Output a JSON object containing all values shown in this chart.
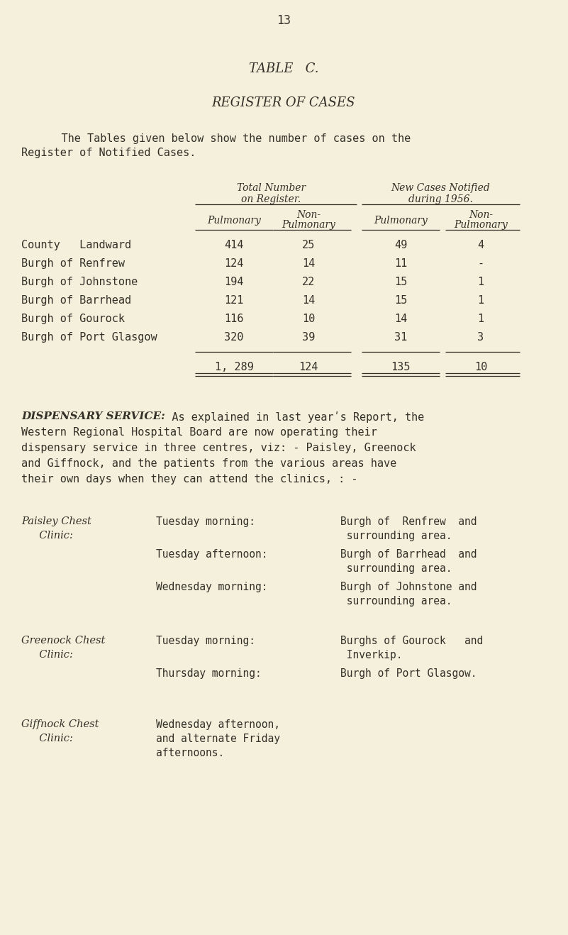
{
  "bg_color": "#f5f0dc",
  "text_color": "#333028",
  "page_number": "13",
  "title1": "TABLE   C.",
  "title2": "REGISTER OF CASES",
  "intro_line1": "    The Tables given below show the number of cases on the",
  "intro_line2": "Register of Notified Cases.",
  "col_header1a": "Total Number",
  "col_header1b": "on Register.",
  "col_header2a": "New Cases Notified",
  "col_header2b": "during 1956.",
  "rows": [
    {
      "label": "County   Landward",
      "v1": "414",
      "v2": "25",
      "v3": "49",
      "v4": "4"
    },
    {
      "label": "Burgh of Renfrew",
      "v1": "124",
      "v2": "14",
      "v3": "11",
      "v4": "-"
    },
    {
      "label": "Burgh of Johnstone",
      "v1": "194",
      "v2": "22",
      "v3": "15",
      "v4": "1"
    },
    {
      "label": "Burgh of Barrhead",
      "v1": "121",
      "v2": "14",
      "v3": "15",
      "v4": "1"
    },
    {
      "label": "Burgh of Gourock",
      "v1": "116",
      "v2": "10",
      "v3": "14",
      "v4": "1"
    },
    {
      "label": "Burgh of Port Glasgow",
      "v1": "320",
      "v2": "39",
      "v3": "31",
      "v4": "3"
    }
  ],
  "totals": [
    "1, 289",
    "124",
    "135",
    "10"
  ],
  "dispensary_title": "DISPENSARY SERVICE:",
  "dispensary_lines": [
    "   As explained in last yearʹs Report, the",
    "Western Regional Hospital Board are now operating their",
    "dispensary service in three centres, viz: - Paisley, Greenock",
    "and Giffnock, and the patients from the various areas have",
    "their own days when they can attend the clinics, : -"
  ],
  "clinic1_name1": "Paisley Chest",
  "clinic1_name2": "  Clinic:",
  "clinic1_s1_time": "Tuesday morning:",
  "clinic1_s1_area1": "Burgh of  Renfrew  and",
  "clinic1_s1_area2": " surrounding area.",
  "clinic1_s2_time": "Tuesday afternoon:",
  "clinic1_s2_area1": "Burgh of Barrhead  and",
  "clinic1_s2_area2": " surrounding area.",
  "clinic1_s3_time": "Wednesday morning:",
  "clinic1_s3_area1": "Burgh of Johnstone and",
  "clinic1_s3_area2": " surrounding area.",
  "clinic2_name1": "Greenock Chest",
  "clinic2_name2": "  Clinic:",
  "clinic2_s1_time": "Tuesday morning:",
  "clinic2_s1_area1": "Burghs of Gourock   and",
  "clinic2_s1_area2": " Inverkip.",
  "clinic2_s2_time": "Thursday morning:",
  "clinic2_s2_area1": "Burgh of Port Glasgow.",
  "clinic3_name1": "Giffnock Chest",
  "clinic3_name2": "  Clinic:",
  "clinic3_s1_time1": "Wednesday afternoon,",
  "clinic3_s1_time2": "and alternate Friday",
  "clinic3_s1_time3": "afternoons."
}
